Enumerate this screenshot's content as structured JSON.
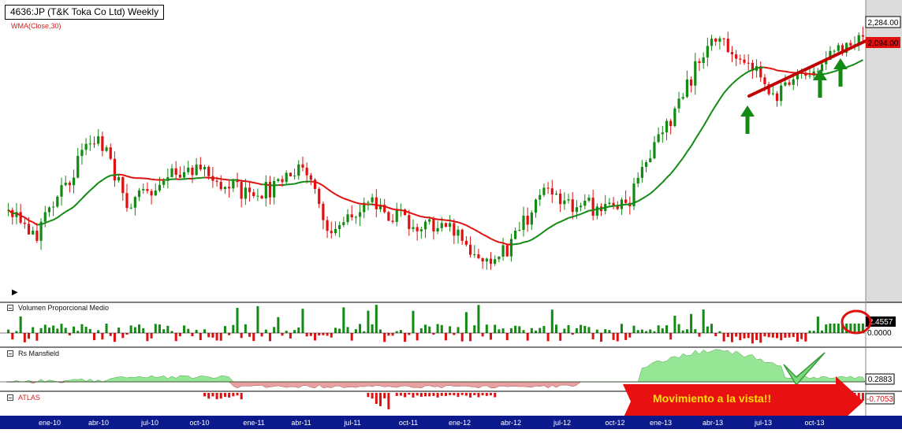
{
  "chart_data": [
    {
      "type": "candlestick",
      "title": "4636:JP (T&K Toka Co Ltd) Weekly",
      "overlay": {
        "name": "WMA(Close,30)",
        "color_up": "#138a13",
        "color_down": "#e01010"
      },
      "x_axis_labels": [
        "ene-10",
        "abr-10",
        "jul-10",
        "oct-10",
        "ene-11",
        "abr-11",
        "jul-11",
        "oct-11",
        "ene-12",
        "abr-12",
        "jul-12",
        "oct-12",
        "ene-13",
        "abr-13",
        "jul-13",
        "oct-13"
      ],
      "approx_close_path": [
        {
          "date": "ene-10",
          "close": 1650
        },
        {
          "date": "feb-10",
          "close": 1540
        },
        {
          "date": "abr-10",
          "close": 1740
        },
        {
          "date": "may-10",
          "close": 1920
        },
        {
          "date": "jun-10",
          "close": 1670
        },
        {
          "date": "jul-10",
          "close": 1700
        },
        {
          "date": "sep-10",
          "close": 1800
        },
        {
          "date": "oct-10",
          "close": 1760
        },
        {
          "date": "dic-10",
          "close": 1690
        },
        {
          "date": "ene-11",
          "close": 1710
        },
        {
          "date": "mar-11",
          "close": 1820
        },
        {
          "date": "mar-11b",
          "close": 1520
        },
        {
          "date": "abr-11",
          "close": 1660
        },
        {
          "date": "jul-11",
          "close": 1620
        },
        {
          "date": "sep-11",
          "close": 1560
        },
        {
          "date": "oct-11",
          "close": 1590
        },
        {
          "date": "dic-11",
          "close": 1430
        },
        {
          "date": "ene-12",
          "close": 1480
        },
        {
          "date": "abr-12",
          "close": 1690
        },
        {
          "date": "jul-12",
          "close": 1660
        },
        {
          "date": "sep-12",
          "close": 1640
        },
        {
          "date": "oct-12",
          "close": 1660
        },
        {
          "date": "dic-12",
          "close": 1870
        },
        {
          "date": "ene-13",
          "close": 2100
        },
        {
          "date": "abr-13",
          "close": 2300
        },
        {
          "date": "may-13",
          "close": 2200
        },
        {
          "date": "jun-13",
          "close": 2050
        },
        {
          "date": "jul-13",
          "close": 2150
        },
        {
          "date": "oct-13",
          "close": 2220
        },
        {
          "date": "dic-13",
          "close": 2284
        }
      ],
      "last_price": "2,284.00",
      "wma_last": "2,094.00",
      "annotations": [
        "support trendline",
        "3 buy arrows"
      ]
    },
    {
      "type": "bar",
      "title": "Volumen Proporcional Medio",
      "last_value": "2.4557",
      "zero_label": "0.0000"
    },
    {
      "type": "area",
      "title": "Rs Mansfield",
      "last_value": "0.2883"
    },
    {
      "type": "bar",
      "title": "ATLAS",
      "last_value": "-0.7053"
    }
  ],
  "banner": "Movimiento a la vista!!",
  "colors": {
    "up": "#138a13",
    "down": "#e01010",
    "axis_bar": "#0a1a8c",
    "price_panel": "#dcdcdc",
    "rs_pos": "#96e696",
    "rs_neg": "#e8a0a0"
  }
}
